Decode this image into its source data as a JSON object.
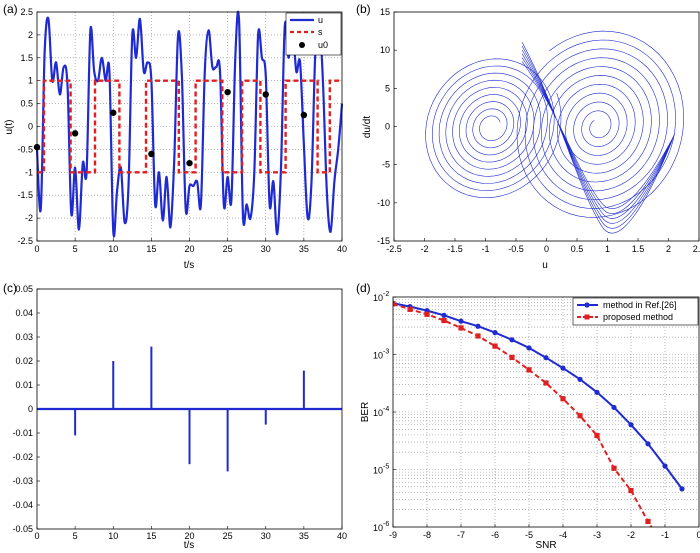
{
  "chart_data": [
    {
      "panel_label": "(a)",
      "type": "line",
      "xlabel": "t/s",
      "ylabel": "u(t)",
      "xlim": [
        0,
        40
      ],
      "ylim": [
        -2.5,
        2.5
      ],
      "xticks": [
        "0",
        "5",
        "10",
        "15",
        "20",
        "25",
        "30",
        "35",
        "40"
      ],
      "yticks": [
        "-2.5",
        "-2",
        "-1.5",
        "-1",
        "-0.5",
        "0",
        "0.5",
        "1",
        "1.5",
        "2",
        "2.5"
      ],
      "grid": true,
      "legend_position": "top-right",
      "colors": {
        "u": "#1f2bd0",
        "s": "#e02020",
        "u0": "#000000"
      },
      "s_switch_times": [
        0.9,
        4.4,
        7.6,
        10.8,
        14.3,
        18.6,
        20.8,
        24.3,
        26.9,
        29.3,
        32.6,
        36.8,
        38.4
      ],
      "s_initial_level": -1,
      "series": [
        {
          "name": "u",
          "x": [
            0,
            0.5,
            1,
            1.5,
            2,
            2.5,
            3,
            3.5,
            4,
            4.5,
            5,
            5.5,
            6,
            6.5,
            7,
            7.5,
            8,
            8.5,
            9,
            9.5,
            10,
            10.5,
            11,
            11.5,
            12,
            12.5,
            13,
            13.5,
            14,
            14.5,
            15,
            15.5,
            16,
            16.5,
            17,
            17.5,
            18,
            18.5,
            19,
            19.5,
            20,
            20.5,
            21,
            21.5,
            22,
            22.5,
            23,
            23.5,
            24,
            24.5,
            25,
            25.5,
            26,
            26.5,
            27,
            27.5,
            28,
            28.5,
            29,
            29.5,
            30,
            30.5,
            31,
            31.5,
            32,
            32.5,
            33,
            33.5,
            34,
            34.5,
            35,
            35.5,
            36,
            36.5,
            37,
            37.5,
            38,
            38.5,
            39,
            39.5,
            40
          ],
          "y": [
            -0.5,
            -1.8,
            1.6,
            2.35,
            1.0,
            1.4,
            0.7,
            1.3,
            0.9,
            -1.9,
            -0.9,
            -2.25,
            -0.8,
            -1.0,
            2.1,
            1.2,
            1.0,
            1.5,
            1.0,
            1.2,
            -2.3,
            -1.4,
            -0.9,
            -2.1,
            -1.3,
            2.0,
            1.5,
            2.35,
            1.2,
            1.4,
            1.0,
            -1.7,
            -1.0,
            -2.05,
            -1.1,
            -2.2,
            -0.7,
            2.0,
            1.1,
            -1.8,
            -1.3,
            -1.3,
            -1.2,
            -1.7,
            1.2,
            2.1,
            1.3,
            1.3,
            1.2,
            -1.7,
            -1.1,
            -1.6,
            1.5,
            2.3,
            -1.9,
            -1.7,
            -2.0,
            -1.0,
            2.0,
            1.5,
            1.1,
            -1.7,
            -1.2,
            -2.35,
            -0.9,
            2.2,
            1.5,
            2.2,
            1.2,
            1.4,
            -0.4,
            -2.0,
            -1.2,
            1.6,
            2.3,
            1.0,
            -1.4,
            -2.3,
            -1.2,
            -0.5,
            0.5
          ]
        },
        {
          "name": "s"
        },
        {
          "name": "u0",
          "x": [
            0,
            5,
            10,
            15,
            20,
            25,
            30,
            35
          ],
          "y": [
            -0.45,
            -0.15,
            0.3,
            -0.6,
            -0.8,
            0.75,
            0.7,
            0.25
          ]
        }
      ]
    },
    {
      "panel_label": "(b)",
      "type": "line",
      "xlabel": "u",
      "ylabel": "du/dt",
      "xlim": [
        -2.5,
        2.5
      ],
      "ylim": [
        -15,
        15
      ],
      "xticks": [
        "-2.5",
        "-2",
        "-1.5",
        "-1",
        "-0.5",
        "0",
        "0.5",
        "1",
        "1.5",
        "2",
        "2.5"
      ],
      "yticks": [
        "-15",
        "-10",
        "-5",
        "0",
        "5",
        "10",
        "15"
      ],
      "grid": false,
      "colors": {
        "trajectory": "#1f2bd0"
      },
      "attractor_description_values": {
        "left_center": [
          -0.9,
          0
        ],
        "right_center": [
          0.85,
          0
        ],
        "u_extent": [
          -2.05,
          2.3
        ],
        "dudt_extent": [
          -10.2,
          13.3
        ]
      }
    },
    {
      "panel_label": "(c)",
      "type": "bar",
      "xlabel": "t/s",
      "ylabel": "",
      "xlim": [
        0,
        40
      ],
      "ylim": [
        -0.05,
        0.05
      ],
      "xticks": [
        "0",
        "5",
        "10",
        "15",
        "20",
        "25",
        "30",
        "35",
        "40"
      ],
      "yticks": [
        "-0.05",
        "-0.04",
        "-0.03",
        "-0.02",
        "-0.01",
        "0",
        "0.01",
        "0.02",
        "0.03",
        "0.04",
        "0.05"
      ],
      "grid": false,
      "colors": {
        "impulse": "#1f2bd0"
      },
      "x": [
        5,
        10,
        15,
        20,
        25,
        30,
        35
      ],
      "values": [
        -0.011,
        0.02,
        0.026,
        -0.023,
        -0.026,
        -0.0065,
        0.016
      ]
    },
    {
      "panel_label": "(d)",
      "type": "line",
      "xlabel": "SNR",
      "ylabel": "BER",
      "xlim": [
        -9,
        0
      ],
      "ylim_exponent": [
        -6,
        -2
      ],
      "log_y": true,
      "xticks": [
        "-9",
        "-8",
        "-7",
        "-6",
        "-5",
        "-4",
        "-3",
        "-2",
        "-1",
        "0"
      ],
      "yticks": [
        "10",
        "10",
        "10",
        "10",
        "10"
      ],
      "ytick_exponents": [
        "-6",
        "-5",
        "-4",
        "-3",
        "-2"
      ],
      "grid": true,
      "legend_position": "top-right",
      "series": [
        {
          "name": "method in Ref.[26]",
          "color": "#1f2bd0",
          "x": [
            -9,
            -8.5,
            -8,
            -7.5,
            -7,
            -6.5,
            -6,
            -5.5,
            -5,
            -4.5,
            -4,
            -3.5,
            -3,
            -2.5,
            -2,
            -1.5,
            -1,
            -0.5
          ],
          "y": [
            0.0078,
            0.0068,
            0.0058,
            0.0048,
            0.0038,
            0.0031,
            0.0024,
            0.0018,
            0.0013,
            0.00088,
            0.00058,
            0.00037,
            0.00022,
            0.00012,
            6e-05,
            2.8e-05,
            1.15e-05,
            4.6e-06
          ]
        },
        {
          "name": "proposed method",
          "color": "#e02020",
          "x": [
            -9,
            -8.5,
            -8,
            -7.5,
            -7,
            -6.5,
            -6,
            -5.5,
            -5,
            -4.5,
            -4,
            -3.5,
            -3,
            -2.5,
            -2,
            -1.5,
            -1
          ],
          "y": [
            0.0076,
            0.0061,
            0.005,
            0.0039,
            0.0029,
            0.0021,
            0.0014,
            0.00089,
            0.00054,
            0.00032,
            0.00017,
            8.6e-05,
            3.9e-05,
            1.05e-05,
            4.3e-06,
            1.25e-06,
            4e-07
          ]
        }
      ]
    }
  ]
}
